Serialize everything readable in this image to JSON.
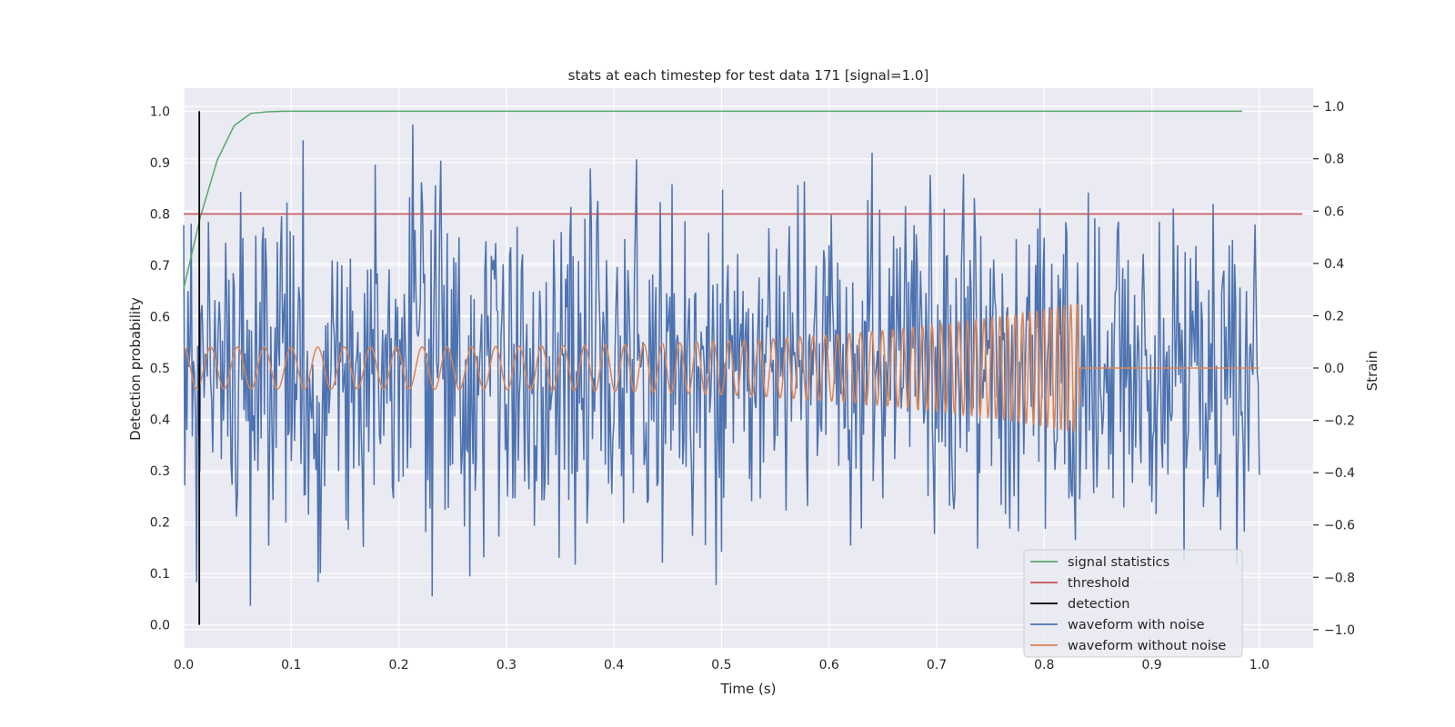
{
  "chart_data": {
    "type": "line",
    "title": "stats at each timestep for test data 171 [signal=1.0]",
    "xlabel": "Time (s)",
    "ylabel_left": "Detection probability",
    "ylabel_right": "Strain",
    "xlim": [
      0.0,
      1.05
    ],
    "ylim_left": [
      -0.045,
      1.045
    ],
    "ylim_right": [
      -1.07,
      1.07
    ],
    "x_ticks": [
      "0.0",
      "0.1",
      "0.2",
      "0.3",
      "0.4",
      "0.5",
      "0.6",
      "0.7",
      "0.8",
      "0.9",
      "1.0"
    ],
    "y_ticks_left": [
      "0.0",
      "0.1",
      "0.2",
      "0.3",
      "0.4",
      "0.5",
      "0.6",
      "0.7",
      "0.8",
      "0.9",
      "1.0"
    ],
    "y_ticks_right": [
      "−1.0",
      "−0.8",
      "−0.6",
      "−0.4",
      "−0.2",
      "0.0",
      "0.2",
      "0.4",
      "0.6",
      "0.8",
      "1.0"
    ],
    "grid": true,
    "legend_position": "lower-right",
    "series": [
      {
        "name": "signal statistics",
        "color": "#55a868",
        "axis": "left",
        "x": [
          0.0,
          0.0156,
          0.0312,
          0.0469,
          0.0625,
          0.0781,
          0.0938,
          0.2,
          0.4,
          0.6,
          0.8,
          0.984
        ],
        "y": [
          0.655,
          0.795,
          0.905,
          0.972,
          0.996,
          0.999,
          1.0,
          1.0,
          1.0,
          1.0,
          1.0,
          1.0
        ]
      },
      {
        "name": "threshold",
        "color": "#c44e52",
        "axis": "left",
        "x": [
          0.0,
          1.04
        ],
        "y": [
          0.8,
          0.8
        ]
      },
      {
        "name": "detection",
        "color": "#000000",
        "axis": "left",
        "x": [
          0.0145,
          0.0145
        ],
        "y": [
          0.0,
          1.0
        ]
      },
      {
        "name": "waveform with noise",
        "color": "#4c72b0",
        "axis": "right",
        "x_start": 0.0,
        "x_end": 1.0,
        "y_range": [
          -1.0,
          1.0
        ]
      },
      {
        "name": "waveform without noise",
        "color": "#dd8452",
        "axis": "right",
        "x_start": 0.0,
        "x_end": 1.0,
        "chirp_end_time": 0.833,
        "amplitude_start": 0.08,
        "amplitude_peak": 0.25
      }
    ]
  }
}
